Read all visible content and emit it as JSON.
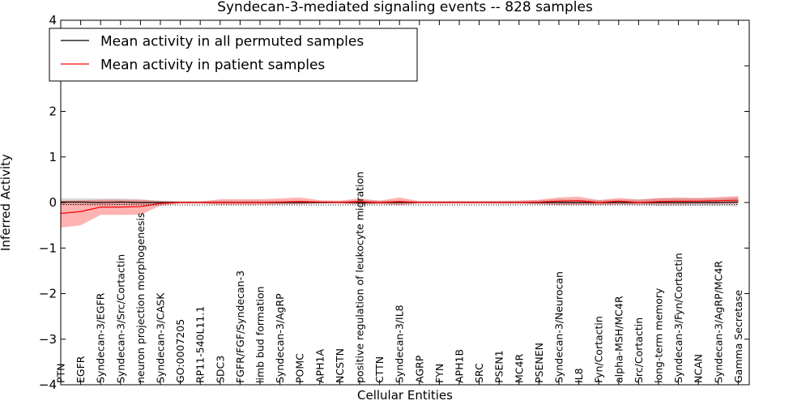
{
  "chart_data": {
    "type": "line",
    "title": "Syndecan-3-mediated signaling events -- 828 samples",
    "xlabel": "Cellular Entities",
    "ylabel": "Inferred Activity",
    "ylim": [
      -4,
      4
    ],
    "yticks": [
      -4,
      -3,
      -2,
      -1,
      0,
      1,
      2,
      3,
      4
    ],
    "legend_position": "top-left",
    "categories": [
      "PTN",
      "EGFR",
      "Syndecan-3/EGFR",
      "Syndecan-3/Src/Cortactin",
      "neuron projection morphogenesis",
      "Syndecan-3/CASK",
      "GO:0007205",
      "RP11-540L11.1",
      "SDC3",
      "FGFR/FGF/Syndecan-3",
      "limb bud formation",
      "Syndecan-3/AgRP",
      "POMC",
      "APH1A",
      "NCSTN",
      "positive regulation of leukocyte migration",
      "CTTN",
      "Syndecan-3/IL8",
      "AGRP",
      "FYN",
      "APH1B",
      "SRC",
      "PSEN1",
      "MC4R",
      "PSENEN",
      "Syndecan-3/Neurocan",
      "IL8",
      "Fyn/Cortactin",
      "alpha-MSH/MC4R",
      "Src/Cortactin",
      "long-term memory",
      "Syndecan-3/Fyn/Cortactin",
      "NCAN",
      "Syndecan-3/AgRP/MC4R",
      "Gamma Secretase"
    ],
    "series": [
      {
        "name": "Mean activity in all permuted samples",
        "color": "#000000",
        "values": [
          0.01,
          0.01,
          0.0,
          0.01,
          0.0,
          0.0,
          0.0,
          0.0,
          0.0,
          0.0,
          0.0,
          0.0,
          0.0,
          0.0,
          0.0,
          0.0,
          0.0,
          0.0,
          0.0,
          0.0,
          0.0,
          0.0,
          0.0,
          0.0,
          0.0,
          0.0,
          0.0,
          0.0,
          0.0,
          0.0,
          0.0,
          0.0,
          0.0,
          0.0,
          0.01
        ],
        "lower": [
          -0.06,
          -0.06,
          -0.06,
          -0.06,
          -0.05,
          -0.03,
          -0.02,
          -0.02,
          -0.03,
          -0.03,
          -0.03,
          -0.03,
          -0.03,
          -0.02,
          -0.02,
          -0.04,
          -0.03,
          -0.03,
          -0.02,
          -0.02,
          -0.02,
          -0.02,
          -0.03,
          -0.03,
          -0.03,
          -0.06,
          -0.05,
          -0.05,
          -0.05,
          -0.06,
          -0.07,
          -0.07,
          -0.07,
          -0.07,
          -0.09
        ],
        "upper": [
          0.09,
          0.09,
          0.09,
          0.09,
          0.07,
          0.04,
          0.03,
          0.03,
          0.04,
          0.04,
          0.04,
          0.04,
          0.04,
          0.03,
          0.03,
          0.05,
          0.04,
          0.04,
          0.03,
          0.03,
          0.03,
          0.03,
          0.04,
          0.04,
          0.05,
          0.07,
          0.06,
          0.06,
          0.06,
          0.07,
          0.09,
          0.09,
          0.09,
          0.09,
          0.11
        ]
      },
      {
        "name": "Mean activity in patient samples",
        "color": "#ff0000",
        "values": [
          -0.24,
          -0.2,
          -0.1,
          -0.1,
          -0.09,
          -0.02,
          0.0,
          0.0,
          0.0,
          0.0,
          0.0,
          0.01,
          0.02,
          0.01,
          0.0,
          0.02,
          0.0,
          0.02,
          0.0,
          0.0,
          0.0,
          0.0,
          0.0,
          0.0,
          0.01,
          0.03,
          0.04,
          0.0,
          0.03,
          0.0,
          0.02,
          0.03,
          0.03,
          0.04,
          0.05
        ],
        "lower": [
          -0.55,
          -0.5,
          -0.27,
          -0.27,
          -0.27,
          -0.07,
          -0.02,
          -0.02,
          -0.05,
          -0.05,
          -0.05,
          -0.04,
          -0.04,
          -0.02,
          -0.02,
          -0.04,
          -0.03,
          -0.06,
          -0.02,
          -0.02,
          -0.02,
          -0.02,
          -0.02,
          -0.02,
          -0.04,
          -0.05,
          -0.05,
          -0.05,
          -0.04,
          -0.04,
          -0.04,
          -0.04,
          -0.03,
          -0.03,
          -0.03
        ],
        "upper": [
          0.04,
          0.05,
          0.06,
          0.06,
          0.06,
          0.03,
          0.02,
          0.02,
          0.07,
          0.07,
          0.07,
          0.09,
          0.11,
          0.05,
          0.04,
          0.09,
          0.04,
          0.11,
          0.03,
          0.03,
          0.03,
          0.03,
          0.03,
          0.04,
          0.06,
          0.11,
          0.13,
          0.05,
          0.1,
          0.06,
          0.1,
          0.11,
          0.1,
          0.12,
          0.14
        ]
      }
    ]
  }
}
